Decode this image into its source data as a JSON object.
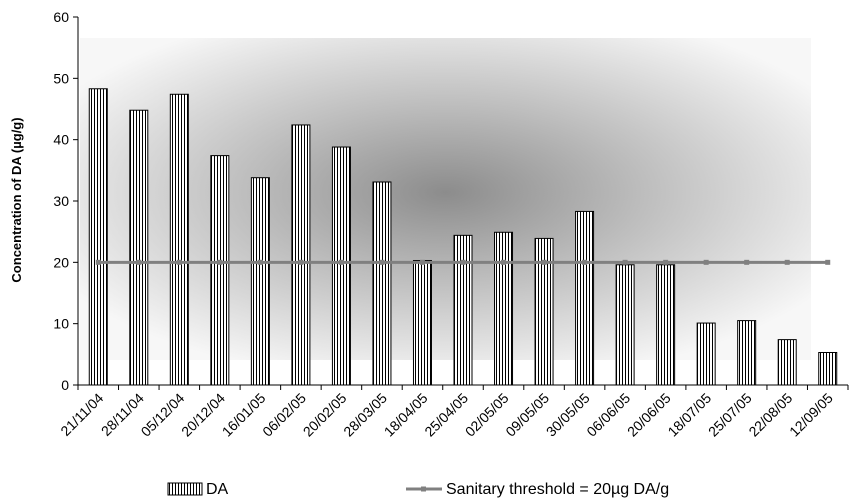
{
  "chart_data": {
    "type": "bar",
    "ylabel": "Concentration of DA (µg/g)",
    "xlabel": "",
    "title": "",
    "ylim": [
      0,
      60
    ],
    "yticks": [
      0,
      10,
      20,
      30,
      40,
      50,
      60
    ],
    "grid": false,
    "legend_position": "bottom",
    "categories": [
      "21/11/04",
      "28/11/04",
      "05/12/04",
      "20/12/04",
      "16/01/05",
      "06/02/05",
      "20/02/05",
      "28/03/05",
      "18/04/05",
      "25/04/05",
      "02/05/05",
      "09/05/05",
      "30/05/05",
      "06/06/05",
      "20/06/05",
      "18/07/05",
      "25/07/05",
      "22/08/05",
      "12/09/05"
    ],
    "series": [
      {
        "name": "DA",
        "kind": "bar",
        "color": "#ffffff",
        "values": [
          48.3,
          44.8,
          47.4,
          37.4,
          33.8,
          42.4,
          38.8,
          33.1,
          20.3,
          24.4,
          24.9,
          23.9,
          28.3,
          19.6,
          19.6,
          10.1,
          10.5,
          7.4,
          5.3
        ]
      },
      {
        "name": "Sanitary threshold = 20µg DA/g",
        "kind": "line",
        "color": "#808080",
        "values": [
          20,
          20,
          20,
          20,
          20,
          20,
          20,
          20,
          20,
          20,
          20,
          20,
          20,
          20,
          20,
          20,
          20,
          20,
          20
        ]
      }
    ]
  }
}
